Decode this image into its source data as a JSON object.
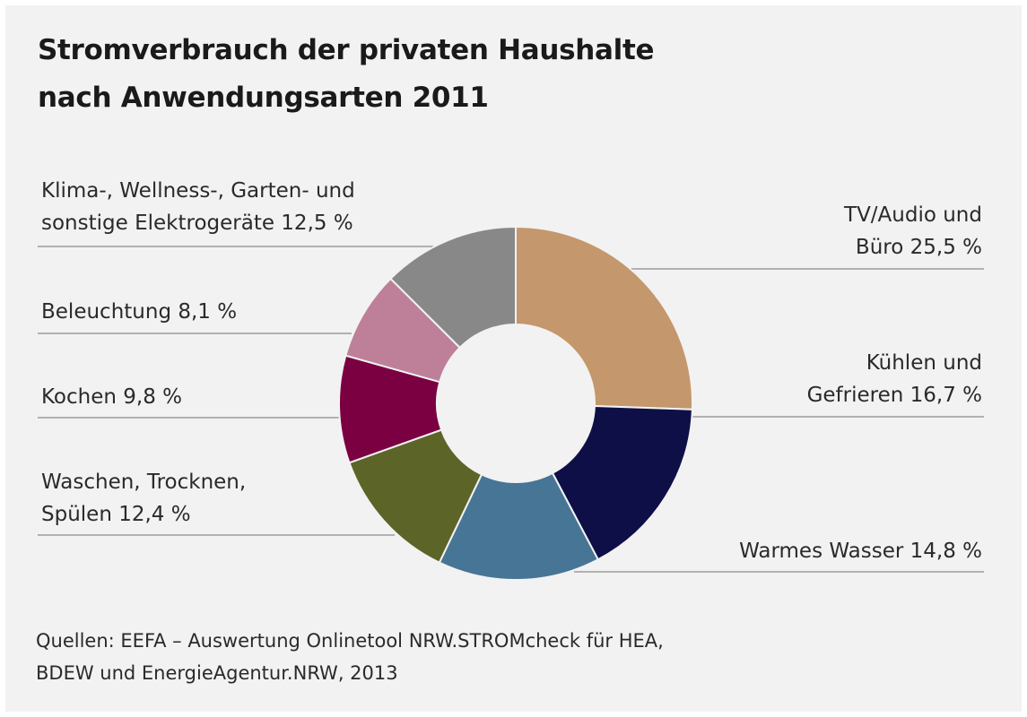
{
  "title_lines": [
    "Stromverbrauch der privaten Haushalte",
    "nach Anwendungsarten 2011"
  ],
  "source_lines": [
    "Quellen: EEFA – Auswertung Onlinetool NRW.STROMcheck für HEA,",
    "BDEW und EnergieAgentur.NRW, 2013"
  ],
  "chart_data": {
    "type": "pie",
    "donut": true,
    "title": "Stromverbrauch der privaten Haushalte nach Anwendungsarten 2011",
    "unit": "%",
    "slices": [
      {
        "label": "TV/Audio und Büro",
        "value": 25.5,
        "color": "#c4976c",
        "label_lines": [
          "TV/Audio und",
          "Büro 25,5 %"
        ],
        "side": "right"
      },
      {
        "label": "Kühlen und Gefrieren",
        "value": 16.7,
        "color": "#0f0f47",
        "label_lines": [
          "Kühlen und",
          "Gefrieren 16,7 %"
        ],
        "side": "right"
      },
      {
        "label": "Warmes Wasser",
        "value": 14.8,
        "color": "#477596",
        "label_lines": [
          "Warmes Wasser 14,8 %"
        ],
        "side": "right"
      },
      {
        "label": "Waschen, Trocknen, Spülen",
        "value": 12.4,
        "color": "#5c6428",
        "label_lines": [
          "Waschen, Trocknen,",
          "Spülen 12,4 %"
        ],
        "side": "left"
      },
      {
        "label": "Kochen",
        "value": 9.8,
        "color": "#7a0042",
        "label_lines": [
          "Kochen 9,8 %"
        ],
        "side": "left"
      },
      {
        "label": "Beleuchtung",
        "value": 8.1,
        "color": "#be7f98",
        "label_lines": [
          "Beleuchtung 8,1 %"
        ],
        "side": "left"
      },
      {
        "label": "Klima-, Wellness-, Garten- und sonstige Elektrogeräte",
        "value": 12.5,
        "color": "#888888",
        "label_lines": [
          "Klima-, Wellness-, Garten- und",
          "sonstige Elektrogeräte 12,5 %"
        ],
        "side": "left"
      }
    ]
  }
}
